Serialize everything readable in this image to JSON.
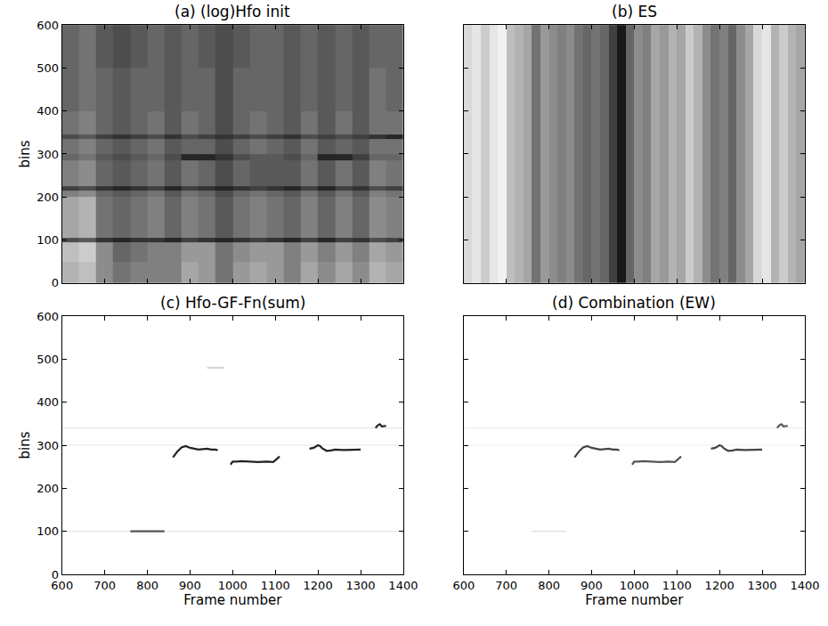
{
  "chart_data": [
    {
      "type": "heatmap",
      "title": "(a) (log)Hfo init",
      "ylabel": "bins",
      "xlim": [
        600,
        1400
      ],
      "ylim": [
        0,
        600
      ],
      "xticks": [
        600,
        700,
        800,
        900,
        1000,
        1100,
        1200,
        1300,
        1400
      ],
      "yticks": [
        0,
        100,
        200,
        300,
        400,
        500,
        600
      ],
      "tick_labels": "y",
      "color": "gray",
      "zlim": [
        0,
        1
      ],
      "x": [
        600,
        640,
        680,
        720,
        760,
        800,
        840,
        880,
        920,
        960,
        1000,
        1040,
        1080,
        1120,
        1160,
        1200,
        1240,
        1280,
        1320,
        1360,
        1400
      ],
      "y": [
        0,
        50,
        95,
        105,
        200,
        215,
        225,
        285,
        300,
        335,
        345,
        400,
        500,
        600
      ],
      "z": [
        [
          0.3,
          0.25,
          0.45,
          0.55,
          0.5,
          0.5,
          0.5,
          0.35,
          0.4,
          0.55,
          0.4,
          0.35,
          0.4,
          0.5,
          0.35,
          0.45,
          0.35,
          0.45,
          0.3,
          0.35
        ],
        [
          0.25,
          0.2,
          0.45,
          0.6,
          0.55,
          0.5,
          0.5,
          0.4,
          0.4,
          0.55,
          0.45,
          0.4,
          0.4,
          0.5,
          0.4,
          0.5,
          0.4,
          0.5,
          0.35,
          0.4
        ],
        [
          0.7,
          0.65,
          0.8,
          0.85,
          0.8,
          0.8,
          0.85,
          0.75,
          0.8,
          0.85,
          0.8,
          0.75,
          0.8,
          0.85,
          0.75,
          0.85,
          0.75,
          0.8,
          0.7,
          0.75
        ],
        [
          0.35,
          0.3,
          0.55,
          0.6,
          0.55,
          0.5,
          0.6,
          0.5,
          0.55,
          0.65,
          0.55,
          0.5,
          0.55,
          0.6,
          0.5,
          0.6,
          0.5,
          0.6,
          0.45,
          0.5
        ],
        [
          0.5,
          0.45,
          0.6,
          0.65,
          0.6,
          0.55,
          0.65,
          0.55,
          0.6,
          0.7,
          0.6,
          0.55,
          0.6,
          0.65,
          0.55,
          0.65,
          0.55,
          0.65,
          0.5,
          0.55
        ],
        [
          0.75,
          0.7,
          0.8,
          0.85,
          0.8,
          0.75,
          0.85,
          0.75,
          0.8,
          0.85,
          0.8,
          0.75,
          0.8,
          0.85,
          0.75,
          0.85,
          0.75,
          0.8,
          0.7,
          0.75
        ],
        [
          0.5,
          0.45,
          0.6,
          0.65,
          0.6,
          0.55,
          0.65,
          0.55,
          0.6,
          0.7,
          0.6,
          0.65,
          0.65,
          0.65,
          0.55,
          0.65,
          0.55,
          0.65,
          0.5,
          0.55
        ],
        [
          0.6,
          0.55,
          0.65,
          0.7,
          0.65,
          0.6,
          0.7,
          0.85,
          0.85,
          0.8,
          0.7,
          0.65,
          0.65,
          0.7,
          0.6,
          0.85,
          0.85,
          0.75,
          0.6,
          0.6
        ],
        [
          0.55,
          0.5,
          0.6,
          0.65,
          0.6,
          0.55,
          0.65,
          0.6,
          0.6,
          0.7,
          0.6,
          0.55,
          0.6,
          0.65,
          0.55,
          0.65,
          0.6,
          0.65,
          0.55,
          0.55
        ],
        [
          0.7,
          0.65,
          0.75,
          0.8,
          0.75,
          0.7,
          0.8,
          0.7,
          0.75,
          0.8,
          0.75,
          0.7,
          0.75,
          0.8,
          0.7,
          0.75,
          0.7,
          0.75,
          0.8,
          0.85
        ],
        [
          0.55,
          0.5,
          0.6,
          0.65,
          0.6,
          0.55,
          0.65,
          0.55,
          0.6,
          0.7,
          0.6,
          0.55,
          0.6,
          0.65,
          0.55,
          0.65,
          0.55,
          0.65,
          0.55,
          0.55
        ],
        [
          0.6,
          0.55,
          0.6,
          0.65,
          0.6,
          0.6,
          0.65,
          0.6,
          0.6,
          0.7,
          0.6,
          0.6,
          0.6,
          0.65,
          0.6,
          0.65,
          0.6,
          0.65,
          0.55,
          0.6
        ],
        [
          0.6,
          0.55,
          0.65,
          0.7,
          0.65,
          0.6,
          0.65,
          0.6,
          0.65,
          0.7,
          0.65,
          0.6,
          0.6,
          0.65,
          0.6,
          0.65,
          0.6,
          0.65,
          0.6,
          0.6
        ]
      ]
    },
    {
      "type": "heatmap",
      "title": "(b) ES",
      "xlim": [
        600,
        1400
      ],
      "ylim": [
        0,
        600
      ],
      "xticks": [
        600,
        700,
        800,
        900,
        1000,
        1100,
        1200,
        1300,
        1400
      ],
      "yticks": [
        0,
        100,
        200,
        300,
        400,
        500,
        600
      ],
      "tick_labels": false,
      "color": "gray",
      "zlim": [
        0,
        1
      ],
      "x": [
        600,
        620,
        640,
        660,
        680,
        700,
        720,
        740,
        760,
        780,
        800,
        820,
        840,
        860,
        880,
        900,
        920,
        940,
        960,
        980,
        1000,
        1020,
        1040,
        1060,
        1080,
        1100,
        1120,
        1140,
        1160,
        1180,
        1200,
        1220,
        1240,
        1260,
        1280,
        1300,
        1320,
        1340,
        1360,
        1380,
        1400
      ],
      "y": [
        0,
        600
      ],
      "z": [
        [
          0.15,
          0.1,
          0.2,
          0.1,
          0.05,
          0.25,
          0.3,
          0.35,
          0.55,
          0.4,
          0.45,
          0.5,
          0.45,
          0.55,
          0.6,
          0.55,
          0.6,
          0.75,
          0.9,
          0.6,
          0.45,
          0.5,
          0.35,
          0.4,
          0.3,
          0.35,
          0.2,
          0.3,
          0.45,
          0.55,
          0.5,
          0.6,
          0.45,
          0.35,
          0.15,
          0.1,
          0.3,
          0.2,
          0.3,
          0.35
        ]
      ]
    },
    {
      "type": "line",
      "title": "(c) Hfo-GF-Fn(sum)",
      "xlabel": "Frame number",
      "ylabel": "bins",
      "xlim": [
        600,
        1400
      ],
      "ylim": [
        0,
        600
      ],
      "xticks": [
        600,
        700,
        800,
        900,
        1000,
        1100,
        1200,
        1300,
        1400
      ],
      "yticks": [
        0,
        100,
        200,
        300,
        400,
        500,
        600
      ],
      "series": [
        {
          "color": "#e2e2e2",
          "x": [
            600,
            1400
          ],
          "values": [
            340,
            340
          ]
        },
        {
          "color": "#e6e6e6",
          "x": [
            600,
            1400
          ],
          "values": [
            300,
            300
          ]
        },
        {
          "color": "#e6e6e6",
          "x": [
            600,
            1400
          ],
          "values": [
            100,
            100
          ]
        },
        {
          "color": "#aaaaaa",
          "x": [
            940,
            960,
            980
          ],
          "values": [
            480,
            480,
            480
          ]
        },
        {
          "color": "#555555",
          "x": [
            760,
            800,
            840
          ],
          "values": [
            100,
            100,
            100
          ]
        },
        {
          "color": "#222222",
          "x": [
            860,
            870,
            880,
            890,
            900,
            910,
            920,
            930,
            940,
            950,
            960,
            965
          ],
          "values": [
            272,
            285,
            295,
            298,
            294,
            292,
            290,
            291,
            292,
            290,
            290,
            288
          ]
        },
        {
          "color": "#222222",
          "x": [
            995,
            1000,
            1010,
            1020,
            1040,
            1060,
            1080,
            1095,
            1100,
            1105,
            1110
          ],
          "values": [
            255,
            262,
            262,
            263,
            262,
            261,
            262,
            261,
            265,
            270,
            274
          ]
        },
        {
          "color": "#222222",
          "x": [
            1180,
            1190,
            1200,
            1205,
            1210,
            1220,
            1230,
            1240,
            1260,
            1280,
            1300
          ],
          "values": [
            292,
            294,
            300,
            298,
            293,
            287,
            288,
            290,
            289,
            290,
            290
          ]
        },
        {
          "color": "#222222",
          "x": [
            1335,
            1340,
            1345,
            1350,
            1360
          ],
          "values": [
            340,
            346,
            349,
            344,
            345
          ]
        }
      ]
    },
    {
      "type": "line",
      "title": "(d) Combination (EW)",
      "xlabel": "Frame number",
      "xlim": [
        600,
        1400
      ],
      "ylim": [
        0,
        600
      ],
      "xticks": [
        600,
        700,
        800,
        900,
        1000,
        1100,
        1200,
        1300,
        1400
      ],
      "yticks": [
        0,
        100,
        200,
        300,
        400,
        500,
        600
      ],
      "tick_labels": "x",
      "series": [
        {
          "color": "#eeeeee",
          "x": [
            600,
            1400
          ],
          "values": [
            340,
            340
          ]
        },
        {
          "color": "#eeeeee",
          "x": [
            600,
            1400
          ],
          "values": [
            300,
            300
          ]
        },
        {
          "color": "#dddddd",
          "x": [
            760,
            800,
            840
          ],
          "values": [
            100,
            100,
            100
          ]
        },
        {
          "color": "#444444",
          "x": [
            860,
            870,
            880,
            890,
            900,
            910,
            920,
            930,
            940,
            950,
            960,
            965
          ],
          "values": [
            272,
            285,
            295,
            298,
            294,
            292,
            290,
            291,
            292,
            290,
            290,
            288
          ]
        },
        {
          "color": "#555555",
          "x": [
            995,
            1000,
            1010,
            1020,
            1040,
            1060,
            1080,
            1095,
            1100,
            1105,
            1110
          ],
          "values": [
            255,
            262,
            262,
            263,
            262,
            261,
            262,
            261,
            265,
            270,
            274
          ]
        },
        {
          "color": "#444444",
          "x": [
            1180,
            1190,
            1200,
            1205,
            1210,
            1220,
            1230,
            1240,
            1260,
            1280,
            1300
          ],
          "values": [
            292,
            294,
            300,
            298,
            293,
            287,
            288,
            290,
            289,
            290,
            290
          ]
        },
        {
          "color": "#555555",
          "x": [
            1335,
            1340,
            1345,
            1350,
            1360
          ],
          "values": [
            340,
            346,
            349,
            344,
            345
          ]
        }
      ]
    }
  ]
}
